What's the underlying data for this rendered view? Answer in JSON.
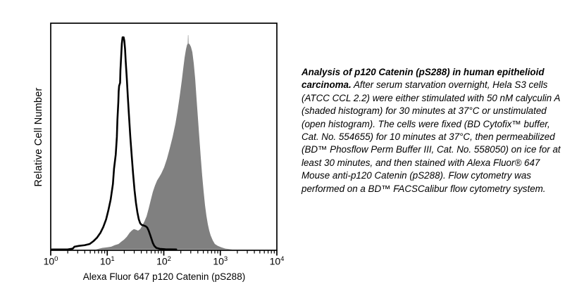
{
  "figure": {
    "y_axis_label": "Relative Cell Number",
    "x_axis_label": "Alexa Fluor 647 p120 Catenin (pS288)",
    "x_tick_base": "10",
    "x_tick_exponents": [
      0,
      1,
      2,
      3,
      4
    ]
  },
  "caption": {
    "lead": "Analysis of p120 Catenin (pS288) in human epithelioid carcinoma.",
    "body": "  After serum starvation overnight, Hela S3 cells (ATCC CCL 2.2) were either stimulated with 50 nM calyculin A (shaded histogram) for 30 minutes at 37°C or unstimulated (open histogram).  The cells were fixed (BD Cytofix™ buffer, Cat. No. 554655) for 10 minutes at 37°C, then permeabilized (BD™ Phosflow Perm Buffer III, Cat. No. 558050) on ice for at least 30 minutes, and then stained with Alexa Fluor® 647 Mouse anti-p120 Catenin (pS288).  Flow cytometry was performed on a BD™ FACSCalibur flow cytometry system."
  },
  "colors": {
    "axis": "#000000",
    "open_histogram": "#000000",
    "shaded_histogram": "#808080",
    "background": "#ffffff"
  },
  "chart_data": {
    "type": "area",
    "subtype": "flow-cytometry-overlay-histogram",
    "title": "",
    "xlabel": "Alexa Fluor 647 p120 Catenin (pS288)",
    "ylabel": "Relative Cell Number",
    "x_scale": "log10",
    "x_range_exponents": [
      0,
      4
    ],
    "x_tick_labels": [
      "10^0",
      "10^1",
      "10^2",
      "10^3",
      "10^4"
    ],
    "y_tick_labels": [],
    "grid": false,
    "legend_position": "none",
    "series": [
      {
        "name": "unstimulated (open histogram)",
        "style": "open",
        "color": "#000000",
        "peak_x_log10": 1.28,
        "points": [
          [
            0.02,
            0
          ],
          [
            0.3,
            0
          ],
          [
            0.39,
            0.004
          ],
          [
            0.42,
            0.013
          ],
          [
            0.5,
            0.017
          ],
          [
            0.6,
            0.02
          ],
          [
            0.69,
            0.026
          ],
          [
            0.76,
            0.04
          ],
          [
            0.82,
            0.056
          ],
          [
            0.88,
            0.079
          ],
          [
            0.93,
            0.106
          ],
          [
            0.98,
            0.142
          ],
          [
            1.02,
            0.185
          ],
          [
            1.06,
            0.235
          ],
          [
            1.1,
            0.308
          ],
          [
            1.12,
            0.381
          ],
          [
            1.15,
            0.447
          ],
          [
            1.17,
            0.53
          ],
          [
            1.18,
            0.613
          ],
          [
            1.196,
            0.695
          ],
          [
            1.202,
            0.745
          ],
          [
            1.21,
            0.771
          ],
          [
            1.227,
            0.785
          ],
          [
            1.233,
            0.844
          ],
          [
            1.246,
            0.91
          ],
          [
            1.258,
            0.97
          ],
          [
            1.271,
            1.0
          ],
          [
            1.29,
            1.0
          ],
          [
            1.302,
            0.983
          ],
          [
            1.315,
            0.944
          ],
          [
            1.327,
            0.884
          ],
          [
            1.346,
            0.805
          ],
          [
            1.364,
            0.719
          ],
          [
            1.383,
            0.636
          ],
          [
            1.408,
            0.53
          ],
          [
            1.433,
            0.44
          ],
          [
            1.458,
            0.354
          ],
          [
            1.483,
            0.278
          ],
          [
            1.508,
            0.219
          ],
          [
            1.533,
            0.175
          ],
          [
            1.558,
            0.142
          ],
          [
            1.583,
            0.123
          ],
          [
            1.607,
            0.116
          ],
          [
            1.645,
            0.113
          ],
          [
            1.682,
            0.109
          ],
          [
            1.707,
            0.103
          ],
          [
            1.732,
            0.089
          ],
          [
            1.757,
            0.07
          ],
          [
            1.782,
            0.05
          ],
          [
            1.807,
            0.03
          ],
          [
            1.832,
            0.017
          ],
          [
            1.869,
            0.007
          ],
          [
            1.93,
            0.003
          ],
          [
            2.03,
            0.001
          ],
          [
            2.22,
            0
          ]
        ]
      },
      {
        "name": "50 nM calyculin A stimulated (shaded histogram)",
        "style": "filled",
        "color": "#808080",
        "peak_x_log10": 2.43,
        "points": [
          [
            0.8,
            0
          ],
          [
            0.91,
            0.007
          ],
          [
            1.0,
            0.01
          ],
          [
            1.07,
            0.013
          ],
          [
            1.13,
            0.02
          ],
          [
            1.2,
            0.026
          ],
          [
            1.246,
            0.036
          ],
          [
            1.296,
            0.046
          ],
          [
            1.346,
            0.06
          ],
          [
            1.396,
            0.079
          ],
          [
            1.433,
            0.089
          ],
          [
            1.47,
            0.096
          ],
          [
            1.508,
            0.093
          ],
          [
            1.545,
            0.089
          ],
          [
            1.583,
            0.096
          ],
          [
            1.62,
            0.113
          ],
          [
            1.657,
            0.132
          ],
          [
            1.695,
            0.156
          ],
          [
            1.732,
            0.192
          ],
          [
            1.769,
            0.232
          ],
          [
            1.807,
            0.272
          ],
          [
            1.844,
            0.301
          ],
          [
            1.881,
            0.325
          ],
          [
            1.919,
            0.341
          ],
          [
            1.956,
            0.358
          ],
          [
            2.006,
            0.387
          ],
          [
            2.056,
            0.427
          ],
          [
            2.106,
            0.477
          ],
          [
            2.156,
            0.53
          ],
          [
            2.206,
            0.593
          ],
          [
            2.243,
            0.652
          ],
          [
            2.28,
            0.719
          ],
          [
            2.318,
            0.795
          ],
          [
            2.343,
            0.851
          ],
          [
            2.368,
            0.904
          ],
          [
            2.393,
            0.944
          ],
          [
            2.411,
            0.964
          ],
          [
            2.424,
            0.97
          ],
          [
            2.428,
            1.01
          ],
          [
            2.434,
            1.01
          ],
          [
            2.438,
            0.97
          ],
          [
            2.455,
            0.968
          ],
          [
            2.48,
            0.955
          ],
          [
            2.505,
            0.93
          ],
          [
            2.53,
            0.877
          ],
          [
            2.555,
            0.805
          ],
          [
            2.579,
            0.712
          ],
          [
            2.604,
            0.619
          ],
          [
            2.629,
            0.526
          ],
          [
            2.654,
            0.434
          ],
          [
            2.679,
            0.348
          ],
          [
            2.704,
            0.275
          ],
          [
            2.729,
            0.209
          ],
          [
            2.754,
            0.159
          ],
          [
            2.779,
            0.119
          ],
          [
            2.804,
            0.089
          ],
          [
            2.829,
            0.066
          ],
          [
            2.866,
            0.043
          ],
          [
            2.903,
            0.026
          ],
          [
            2.953,
            0.017
          ],
          [
            3.016,
            0.01
          ],
          [
            3.09,
            0.004
          ],
          [
            3.215,
            0
          ]
        ]
      }
    ]
  }
}
